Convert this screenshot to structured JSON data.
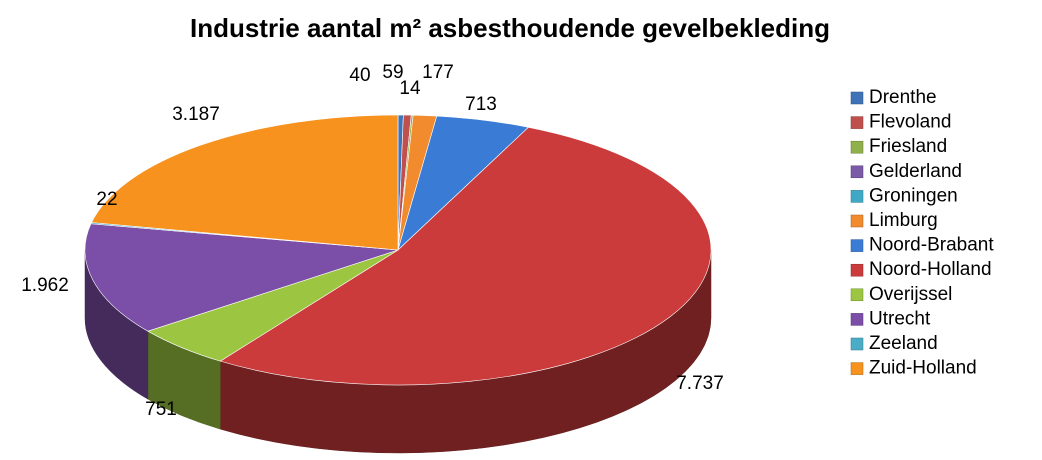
{
  "chart_data": {
    "type": "pie3d",
    "title": "Industrie aantal m² asbesthoudende gevelbekleding",
    "categories": [
      "Drenthe",
      "Flevoland",
      "Friesland",
      "Gelderland",
      "Groningen",
      "Limburg",
      "Noord-Brabant",
      "Noord-Holland",
      "Overijssel",
      "Utrecht",
      "Zeeland",
      "Zuid-Holland"
    ],
    "values": [
      40,
      59,
      14,
      null,
      null,
      177,
      713,
      7737,
      751,
      1962,
      22,
      3187
    ],
    "value_labels": [
      "40",
      "59",
      "14",
      null,
      null,
      "177",
      "713",
      "7.737",
      "751",
      "1.962",
      "22",
      "3.187"
    ],
    "colors": [
      "#3f73b8",
      "#c0504d",
      "#8fb04a",
      "#7b5aa6",
      "#3fa9c5",
      "#f28a2e",
      "#3a7bd5",
      "#cc3b3b",
      "#9cc642",
      "#7b4fa8",
      "#4bacc6",
      "#f7921e"
    ],
    "legend": "right"
  }
}
